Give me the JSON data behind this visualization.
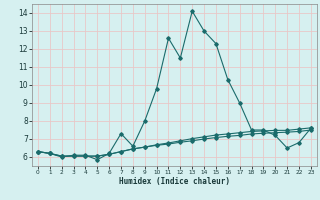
{
  "xlabel": "Humidex (Indice chaleur)",
  "bg_color": "#d6f0f0",
  "grid_color": "#e8c8c8",
  "line_color": "#1a6b6b",
  "xlim": [
    -0.5,
    23.5
  ],
  "ylim": [
    5.5,
    14.5
  ],
  "xticks": [
    0,
    1,
    2,
    3,
    4,
    5,
    6,
    7,
    8,
    9,
    10,
    11,
    12,
    13,
    14,
    15,
    16,
    17,
    18,
    19,
    20,
    21,
    22,
    23
  ],
  "yticks": [
    6,
    7,
    8,
    9,
    10,
    11,
    12,
    13,
    14
  ],
  "series1_x": [
    0,
    1,
    2,
    3,
    4,
    5,
    6,
    7,
    8,
    9,
    10,
    11,
    12,
    13,
    14,
    15,
    16,
    17,
    18,
    19,
    20,
    21,
    22,
    23
  ],
  "series1_y": [
    6.3,
    6.2,
    6.0,
    6.1,
    6.1,
    5.85,
    6.2,
    7.3,
    6.6,
    8.0,
    9.8,
    12.6,
    11.5,
    14.1,
    13.0,
    12.3,
    10.3,
    9.0,
    7.5,
    7.5,
    7.2,
    6.5,
    6.8,
    7.6
  ],
  "series2_x": [
    0,
    1,
    2,
    3,
    4,
    5,
    6,
    7,
    8,
    9,
    10,
    11,
    12,
    13,
    14,
    15,
    16,
    17,
    18,
    19,
    20,
    21,
    22,
    23
  ],
  "series2_y": [
    6.3,
    6.2,
    6.05,
    6.05,
    6.05,
    6.05,
    6.15,
    6.3,
    6.45,
    6.55,
    6.65,
    6.72,
    6.82,
    6.9,
    7.0,
    7.08,
    7.15,
    7.2,
    7.28,
    7.32,
    7.35,
    7.38,
    7.42,
    7.5
  ],
  "series3_x": [
    0,
    1,
    2,
    3,
    4,
    5,
    6,
    7,
    8,
    9,
    10,
    11,
    12,
    13,
    14,
    15,
    16,
    17,
    18,
    19,
    20,
    21,
    22,
    23
  ],
  "series3_y": [
    6.3,
    6.2,
    6.05,
    6.05,
    6.05,
    6.05,
    6.15,
    6.3,
    6.45,
    6.55,
    6.68,
    6.78,
    6.9,
    7.02,
    7.12,
    7.22,
    7.28,
    7.35,
    7.42,
    7.45,
    7.48,
    7.48,
    7.55,
    7.62
  ]
}
